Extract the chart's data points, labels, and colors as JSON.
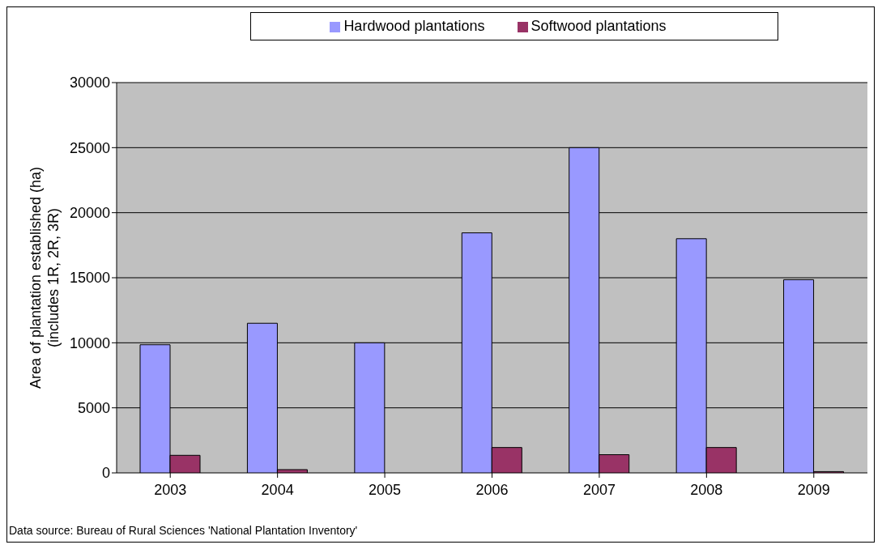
{
  "chart_data": {
    "type": "bar",
    "ylabel": "Area of plantation established (ha)\n(includes 1R, 2R, 3R)",
    "categories": [
      "2003",
      "2004",
      "2005",
      "2006",
      "2007",
      "2008",
      "2009"
    ],
    "series": [
      {
        "name": "Hardwood plantations",
        "color": "#9999ff",
        "values": [
          9850,
          11500,
          10000,
          18450,
          25000,
          18000,
          14850
        ]
      },
      {
        "name": "Softwood plantations",
        "color": "#993366",
        "values": [
          1350,
          250,
          0,
          1950,
          1400,
          1950,
          100
        ]
      }
    ],
    "ylim": [
      0,
      30000
    ],
    "yticks": [
      0,
      5000,
      10000,
      15000,
      20000,
      25000,
      30000
    ],
    "grid": "y",
    "legend": "top",
    "annotations": [
      "Data source: Bureau of Rural Sciences 'National Plantation Inventory'"
    ]
  }
}
